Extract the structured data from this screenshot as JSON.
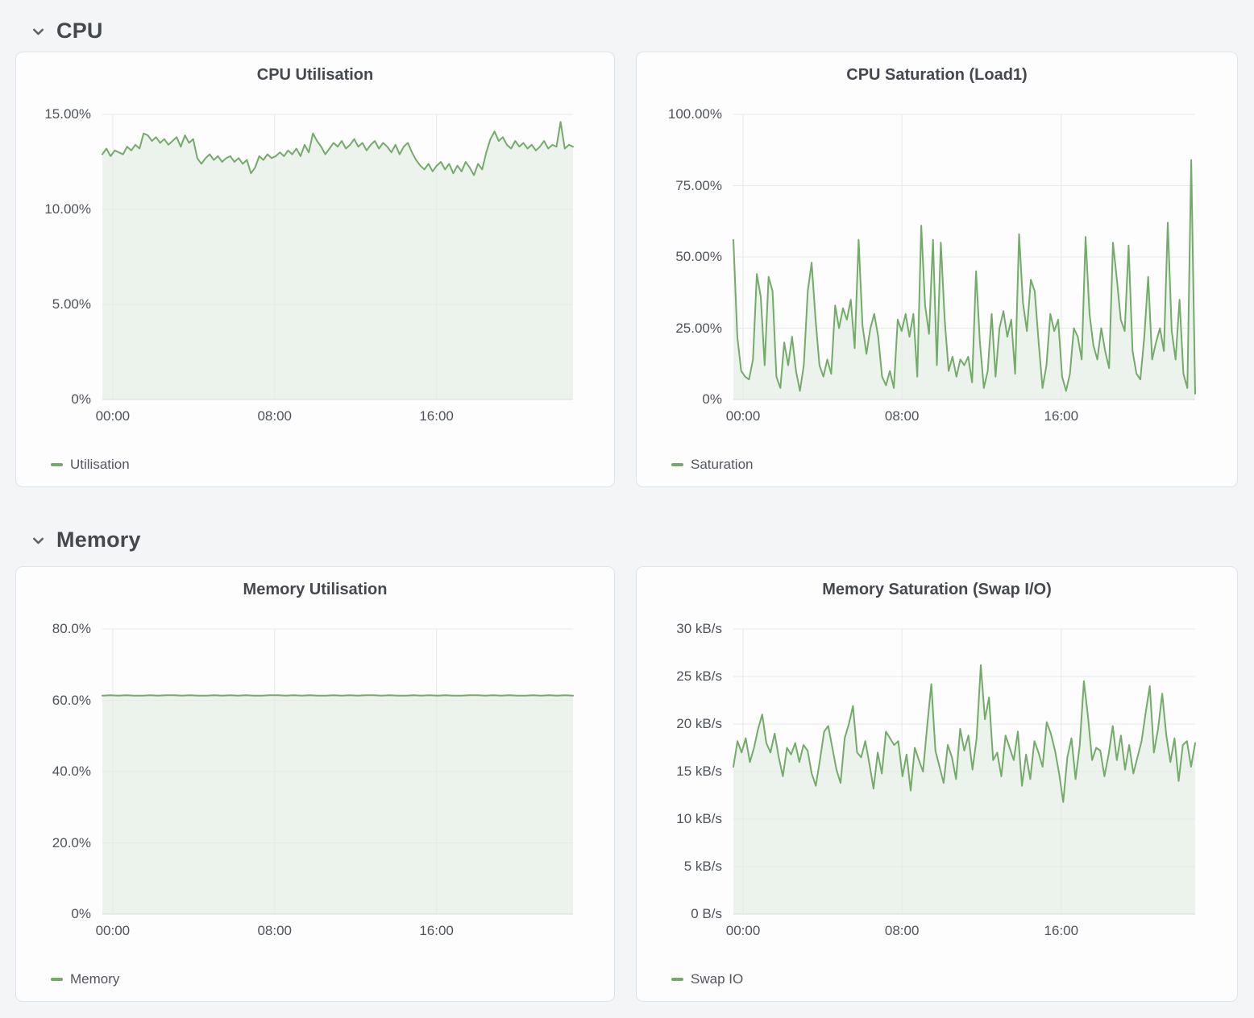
{
  "page": {
    "background": "#f4f5f6",
    "panel_background": "#fdfdfe",
    "border_color": "#dee4eb"
  },
  "colors": {
    "series_green": "#73ab69",
    "series_fill": "rgba(115,171,105,0.12)",
    "grid": "#e7e9ea",
    "axis": "#d8dadd",
    "text_dark": "#45484d",
    "text_axis": "#4f535a"
  },
  "sections": [
    {
      "title": "CPU",
      "collapse_icon": "chevron-down-icon"
    },
    {
      "title": "Memory",
      "collapse_icon": "chevron-down-icon"
    }
  ],
  "chart_data": [
    {
      "type": "area",
      "title": "CPU Utilisation",
      "xlabel": "",
      "ylabel": "",
      "ylim": [
        0,
        15
      ],
      "grid": true,
      "legend_position": "bottom-left",
      "color": "#73ab69",
      "fill": "rgba(115,171,105,0.12)",
      "yticks": [
        {
          "v": 15,
          "label": "15.00%"
        },
        {
          "v": 10,
          "label": "10.00%"
        },
        {
          "v": 5,
          "label": "5.00%"
        },
        {
          "v": 0,
          "label": "0%"
        }
      ],
      "xticks": [
        {
          "f": 0.022,
          "label": "00:00"
        },
        {
          "f": 0.366,
          "label": "08:00"
        },
        {
          "f": 0.71,
          "label": "16:00"
        }
      ],
      "series": [
        {
          "name": "Utilisation",
          "values": [
            12.9,
            13.2,
            12.8,
            13.1,
            13.0,
            12.9,
            13.3,
            13.1,
            13.4,
            13.2,
            14.0,
            13.9,
            13.6,
            13.8,
            13.5,
            13.7,
            13.4,
            13.6,
            13.8,
            13.3,
            13.9,
            13.5,
            13.7,
            12.7,
            12.4,
            12.7,
            12.9,
            12.6,
            12.8,
            12.5,
            12.7,
            12.8,
            12.5,
            12.7,
            12.4,
            12.6,
            11.9,
            12.2,
            12.8,
            12.6,
            12.9,
            12.7,
            12.8,
            13.0,
            12.8,
            13.1,
            12.9,
            13.2,
            12.8,
            13.4,
            13.0,
            14.0,
            13.6,
            13.3,
            12.9,
            13.2,
            13.5,
            13.3,
            13.6,
            13.2,
            13.4,
            13.7,
            13.3,
            13.5,
            13.1,
            13.4,
            13.6,
            13.2,
            13.5,
            13.3,
            13.0,
            13.4,
            12.9,
            13.3,
            13.5,
            13.0,
            12.6,
            12.3,
            12.1,
            12.4,
            12.0,
            12.3,
            12.5,
            12.1,
            12.4,
            11.9,
            12.3,
            12.0,
            12.5,
            12.2,
            11.8,
            12.4,
            12.1,
            13.0,
            13.7,
            14.1,
            13.6,
            13.8,
            13.4,
            13.2,
            13.6,
            13.3,
            13.5,
            13.2,
            13.4,
            13.1,
            13.3,
            13.6,
            13.2,
            13.4,
            13.3,
            14.6,
            13.2,
            13.4,
            13.3
          ]
        }
      ]
    },
    {
      "type": "area",
      "title": "CPU Saturation (Load1)",
      "xlabel": "",
      "ylabel": "",
      "ylim": [
        0,
        100
      ],
      "grid": true,
      "legend_position": "bottom-left",
      "color": "#73ab69",
      "fill": "rgba(115,171,105,0.12)",
      "yticks": [
        {
          "v": 100,
          "label": "100.00%"
        },
        {
          "v": 75,
          "label": "75.00%"
        },
        {
          "v": 50,
          "label": "50.00%"
        },
        {
          "v": 25,
          "label": "25.00%"
        },
        {
          "v": 0,
          "label": "0%"
        }
      ],
      "xticks": [
        {
          "f": 0.021,
          "label": "00:00"
        },
        {
          "f": 0.365,
          "label": "08:00"
        },
        {
          "f": 0.71,
          "label": "16:00"
        }
      ],
      "series": [
        {
          "name": "Saturation",
          "values": [
            56,
            22,
            10,
            8,
            7,
            14,
            44,
            36,
            12,
            43,
            38,
            8,
            4,
            20,
            12,
            22,
            10,
            3,
            12,
            38,
            48,
            28,
            12,
            8,
            14,
            9,
            33,
            25,
            32,
            28,
            35,
            18,
            56,
            26,
            16,
            25,
            30,
            22,
            8,
            5,
            10,
            4,
            28,
            24,
            30,
            22,
            30,
            8,
            61,
            33,
            23,
            56,
            12,
            55,
            28,
            10,
            15,
            8,
            14,
            12,
            15,
            6,
            45,
            20,
            4,
            10,
            30,
            8,
            25,
            31,
            22,
            28,
            9,
            58,
            34,
            24,
            42,
            38,
            20,
            4,
            12,
            30,
            24,
            28,
            8,
            3,
            9,
            25,
            22,
            14,
            57,
            30,
            19,
            14,
            25,
            17,
            11,
            55,
            42,
            28,
            24,
            54,
            17,
            9,
            7,
            22,
            43,
            14,
            20,
            25,
            17,
            62,
            24,
            14,
            35,
            9,
            4,
            84,
            2
          ]
        }
      ]
    },
    {
      "type": "area",
      "title": "Memory Utilisation",
      "xlabel": "",
      "ylabel": "",
      "ylim": [
        0,
        80
      ],
      "grid": true,
      "legend_position": "bottom-left",
      "color": "#73ab69",
      "fill": "rgba(115,171,105,0.12)",
      "yticks": [
        {
          "v": 80,
          "label": "80.0%"
        },
        {
          "v": 60,
          "label": "60.0%"
        },
        {
          "v": 40,
          "label": "40.0%"
        },
        {
          "v": 20,
          "label": "20.0%"
        },
        {
          "v": 0,
          "label": "0%"
        }
      ],
      "xticks": [
        {
          "f": 0.022,
          "label": "00:00"
        },
        {
          "f": 0.366,
          "label": "08:00"
        },
        {
          "f": 0.71,
          "label": "16:00"
        }
      ],
      "series": [
        {
          "name": "Memory",
          "values": [
            61.3,
            61.4,
            61.3,
            61.4,
            61.3,
            61.3,
            61.4,
            61.3,
            61.4,
            61.4,
            61.3,
            61.4,
            61.3,
            61.3,
            61.4,
            61.3,
            61.4,
            61.3,
            61.4,
            61.3,
            61.3,
            61.4,
            61.4,
            61.3,
            61.4,
            61.3,
            61.4,
            61.3,
            61.3,
            61.4,
            61.3,
            61.4,
            61.3,
            61.4,
            61.4,
            61.3,
            61.4,
            61.3,
            61.3,
            61.4,
            61.3,
            61.4,
            61.3,
            61.4,
            61.3,
            61.3,
            61.4,
            61.4,
            61.3,
            61.4,
            61.3,
            61.4,
            61.3,
            61.3,
            61.4,
            61.3,
            61.4,
            61.3,
            61.4,
            61.3
          ]
        }
      ]
    },
    {
      "type": "area",
      "title": "Memory Saturation (Swap I/O)",
      "xlabel": "",
      "ylabel": "",
      "ylim": [
        0,
        30
      ],
      "grid": true,
      "legend_position": "bottom-left",
      "color": "#73ab69",
      "fill": "rgba(115,171,105,0.12)",
      "yticks": [
        {
          "v": 30,
          "label": "30 kB/s"
        },
        {
          "v": 25,
          "label": "25 kB/s"
        },
        {
          "v": 20,
          "label": "20 kB/s"
        },
        {
          "v": 15,
          "label": "15 kB/s"
        },
        {
          "v": 10,
          "label": "10 kB/s"
        },
        {
          "v": 5,
          "label": "5 kB/s"
        },
        {
          "v": 0,
          "label": "0 B/s"
        }
      ],
      "xticks": [
        {
          "f": 0.021,
          "label": "00:00"
        },
        {
          "f": 0.365,
          "label": "08:00"
        },
        {
          "f": 0.71,
          "label": "16:00"
        }
      ],
      "series": [
        {
          "name": "Swap IO",
          "values": [
            15.5,
            18.2,
            17.0,
            18.5,
            16.0,
            17.5,
            19.5,
            21.0,
            18.0,
            17.0,
            19.0,
            16.5,
            14.5,
            17.5,
            16.8,
            18.0,
            16.0,
            17.8,
            17.2,
            14.8,
            13.5,
            16.2,
            19.2,
            19.8,
            17.5,
            15.2,
            13.8,
            18.5,
            20.0,
            21.9,
            17.0,
            16.5,
            18.2,
            15.8,
            13.2,
            17.0,
            14.8,
            19.2,
            18.5,
            17.8,
            18.2,
            14.5,
            16.8,
            13.0,
            17.5,
            16.2,
            15.0,
            19.8,
            24.2,
            17.2,
            15.5,
            13.8,
            17.8,
            16.5,
            14.2,
            19.5,
            17.2,
            18.8,
            15.2,
            18.5,
            26.2,
            20.5,
            22.8,
            16.2,
            17.0,
            14.5,
            18.8,
            17.5,
            16.2,
            19.2,
            13.5,
            16.8,
            14.2,
            18.2,
            17.0,
            15.5,
            20.2,
            19.0,
            17.2,
            14.8,
            11.8,
            16.5,
            18.5,
            14.2,
            17.8,
            24.5,
            20.8,
            16.2,
            17.5,
            17.2,
            14.5,
            16.8,
            19.8,
            16.2,
            18.8,
            15.2,
            17.8,
            14.8,
            16.5,
            18.2,
            21.2,
            24.0,
            17.0,
            19.5,
            23.2,
            18.8,
            16.0,
            18.5,
            14.0,
            17.8,
            18.2,
            15.5,
            18.0
          ]
        }
      ]
    }
  ]
}
